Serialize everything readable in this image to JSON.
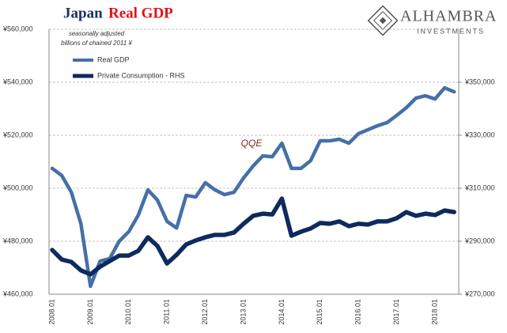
{
  "chart_data": {
    "type": "line",
    "title": "Japan",
    "title_highlight": "Real GDP",
    "subtitle": [
      "seasonally adjusted",
      "billions of chained 2011 ¥"
    ],
    "annotation": "QQE",
    "logo": {
      "name": "ALHAMBRA",
      "tagline": "INVESTMENTS"
    },
    "categories": [
      "2008.01",
      null,
      null,
      null,
      "2009.01",
      null,
      null,
      null,
      "2010.01",
      null,
      null,
      null,
      "2011.01",
      null,
      null,
      null,
      "2012.01",
      null,
      null,
      null,
      "2013.01",
      null,
      null,
      null,
      "2014.01",
      null,
      null,
      null,
      "2015.01",
      null,
      null,
      null,
      "2016.01",
      null,
      null,
      null,
      "2017.01",
      null,
      null,
      null,
      "2018.01",
      null,
      null
    ],
    "series": [
      {
        "name": "Real GDP",
        "color": "#4570a7",
        "axis": "y",
        "values": [
          507500,
          504800,
          498500,
          486600,
          463000,
          472500,
          473400,
          480000,
          483600,
          489900,
          499400,
          495500,
          487500,
          485000,
          497300,
          496700,
          502100,
          499400,
          497600,
          498500,
          503900,
          508400,
          512200,
          511900,
          517000,
          507500,
          507500,
          510400,
          517900,
          517900,
          518500,
          517000,
          520600,
          522100,
          523600,
          524800,
          527500,
          530400,
          534000,
          534900,
          533700,
          537900,
          536400
        ]
      },
      {
        "name": "Private Consumption - RHS",
        "color": "#0e2a5e",
        "axis": "y2",
        "values": [
          286700,
          283100,
          282200,
          279000,
          277500,
          280400,
          282500,
          284600,
          284600,
          286400,
          291500,
          288200,
          281600,
          284900,
          288800,
          290300,
          291500,
          292400,
          292400,
          293300,
          296600,
          299600,
          300400,
          300100,
          306100,
          292100,
          293600,
          294800,
          296900,
          296600,
          297500,
          295700,
          296600,
          296300,
          297500,
          297500,
          298700,
          301000,
          299600,
          300400,
          299900,
          301600,
          301000
        ]
      }
    ],
    "ylim": [
      460000,
      560000
    ],
    "yticks": [
      {
        "value": 460000,
        "label": "¥460,000"
      },
      {
        "value": 480000,
        "label": "¥480,000"
      },
      {
        "value": 500000,
        "label": "¥500,000"
      },
      {
        "value": 520000,
        "label": "¥520,000"
      },
      {
        "value": 540000,
        "label": "¥540,000"
      },
      {
        "value": 560000,
        "label": "¥560,000"
      }
    ],
    "y2lim": [
      270000,
      370000
    ],
    "y2ticks": [
      {
        "value": 270000,
        "label": "¥270,000"
      },
      {
        "value": 290000,
        "label": "¥290,000"
      },
      {
        "value": 310000,
        "label": "¥310,000"
      },
      {
        "value": 330000,
        "label": "¥330,000"
      },
      {
        "value": 350000,
        "label": "¥350,000"
      }
    ],
    "grid": true,
    "legend": "top-left"
  }
}
